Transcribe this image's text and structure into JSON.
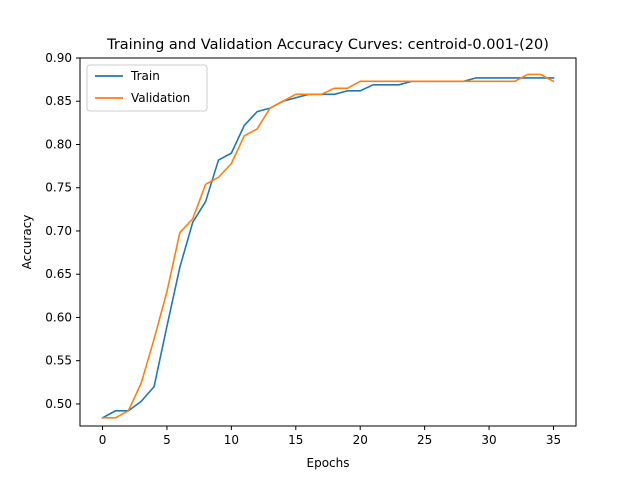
{
  "chart_data": {
    "type": "line",
    "title": "Training and Validation Accuracy Curves: centroid-0.001-(20)",
    "xlabel": "Epochs",
    "ylabel": "Accuracy",
    "xlim": [
      -1.75,
      36.75
    ],
    "ylim": [
      0.4745,
      0.9
    ],
    "xticks": [
      0,
      5,
      10,
      15,
      20,
      25,
      30,
      35
    ],
    "yticks": [
      0.5,
      0.55,
      0.6,
      0.65,
      0.7,
      0.75,
      0.8,
      0.85,
      0.9
    ],
    "ytick_labels": [
      "0.50",
      "0.55",
      "0.60",
      "0.65",
      "0.70",
      "0.75",
      "0.80",
      "0.85",
      "0.90"
    ],
    "grid": false,
    "legend_position": "upper-left",
    "series": [
      {
        "name": "Train",
        "color": "#1f77b4",
        "x": [
          0,
          1,
          2,
          3,
          4,
          5,
          6,
          7,
          8,
          9,
          10,
          11,
          12,
          13,
          14,
          15,
          16,
          17,
          18,
          19,
          20,
          21,
          22,
          23,
          24,
          25,
          26,
          27,
          28,
          29,
          30,
          31,
          32,
          33,
          34,
          35
        ],
        "values": [
          0.484,
          0.492,
          0.492,
          0.503,
          0.52,
          0.59,
          0.658,
          0.71,
          0.734,
          0.782,
          0.79,
          0.822,
          0.838,
          0.842,
          0.85,
          0.854,
          0.858,
          0.858,
          0.858,
          0.862,
          0.862,
          0.869,
          0.869,
          0.869,
          0.873,
          0.873,
          0.873,
          0.873,
          0.873,
          0.877,
          0.877,
          0.877,
          0.877,
          0.877,
          0.877,
          0.877
        ]
      },
      {
        "name": "Validation",
        "color": "#ff7f0e",
        "x": [
          0,
          1,
          2,
          3,
          4,
          5,
          6,
          7,
          8,
          9,
          10,
          11,
          12,
          13,
          14,
          15,
          16,
          17,
          18,
          19,
          20,
          21,
          22,
          23,
          24,
          25,
          26,
          27,
          28,
          29,
          30,
          31,
          32,
          33,
          34,
          35
        ],
        "values": [
          0.484,
          0.484,
          0.492,
          0.524,
          0.575,
          0.63,
          0.698,
          0.714,
          0.754,
          0.762,
          0.778,
          0.81,
          0.818,
          0.842,
          0.85,
          0.858,
          0.858,
          0.858,
          0.865,
          0.865,
          0.873,
          0.873,
          0.873,
          0.873,
          0.873,
          0.873,
          0.873,
          0.873,
          0.873,
          0.873,
          0.873,
          0.873,
          0.873,
          0.881,
          0.881,
          0.873
        ]
      }
    ]
  }
}
